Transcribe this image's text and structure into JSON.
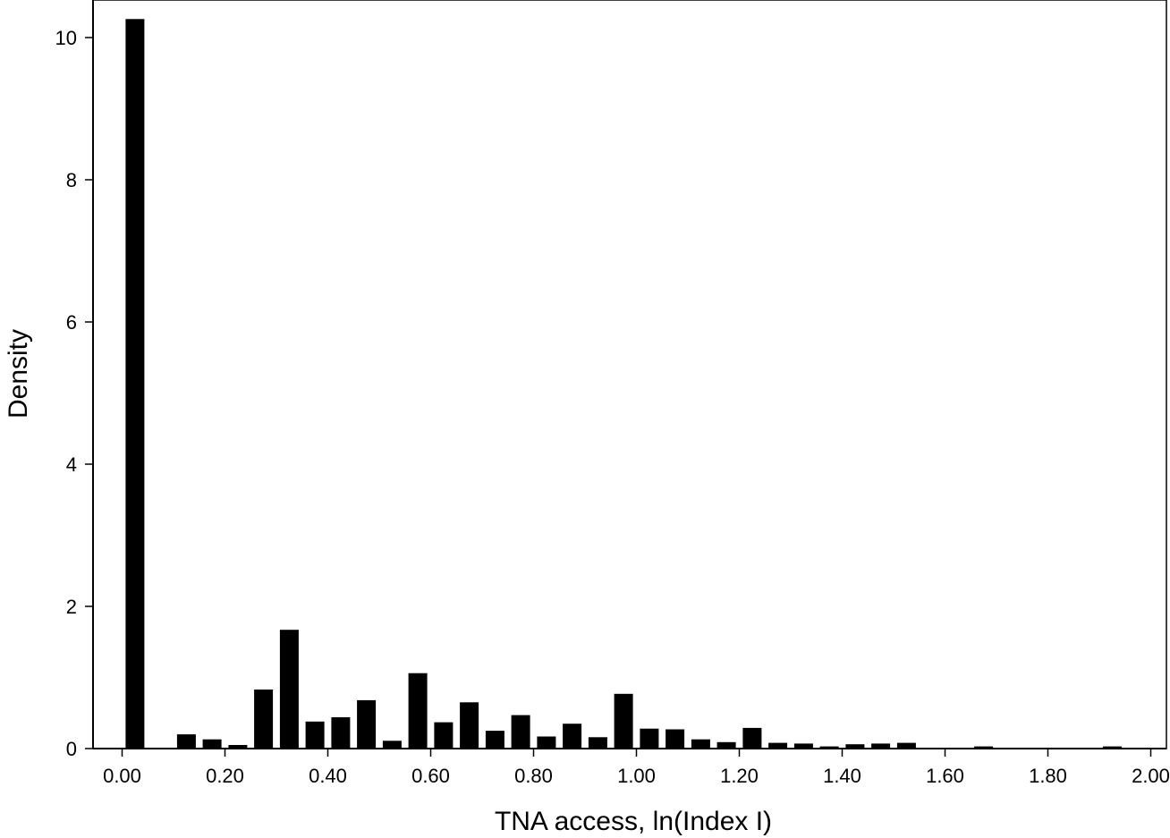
{
  "chart_data": {
    "type": "bar",
    "title": "",
    "xlabel": "TNA access, ln(Index I)",
    "ylabel": "Density",
    "xlim": [
      -0.1,
      2.0
    ],
    "ylim": [
      0,
      10.5
    ],
    "grid": false,
    "legend": "none",
    "bar_color": "#000000",
    "bin_width": 0.05,
    "x_ticks": [
      0,
      0.2,
      0.4,
      0.6,
      0.8,
      1.0,
      1.2,
      1.4,
      1.6,
      1.8,
      2.0
    ],
    "x_tick_labels": [
      "0.00",
      "0.20",
      "0.40",
      "0.60",
      "0.80",
      "1.00",
      "1.20",
      "1.40",
      "1.60",
      "1.80",
      "2.00"
    ],
    "y_ticks": [
      0,
      2,
      4,
      6,
      8,
      10
    ],
    "y_tick_labels": [
      "0",
      "2",
      "4",
      "6",
      "8",
      "10"
    ],
    "x": [
      0.0,
      0.05,
      0.1,
      0.15,
      0.2,
      0.25,
      0.3,
      0.35,
      0.4,
      0.45,
      0.5,
      0.55,
      0.6,
      0.65,
      0.7,
      0.75,
      0.8,
      0.85,
      0.9,
      0.95,
      1.0,
      1.05,
      1.1,
      1.15,
      1.2,
      1.25,
      1.3,
      1.35,
      1.4,
      1.45,
      1.5,
      1.55,
      1.6,
      1.65,
      1.7,
      1.75,
      1.8,
      1.85,
      1.9,
      1.95
    ],
    "values": [
      10.26,
      0,
      0.2,
      0.13,
      0.05,
      0.83,
      1.67,
      0.38,
      0.44,
      0.68,
      0.11,
      1.06,
      0.37,
      0.65,
      0.25,
      0.47,
      0.17,
      0.35,
      0.16,
      0.77,
      0.28,
      0.27,
      0.13,
      0.09,
      0.29,
      0.08,
      0.07,
      0.03,
      0.06,
      0.07,
      0.08,
      0,
      0,
      0.03,
      0,
      0,
      0,
      0,
      0.03,
      0
    ]
  }
}
